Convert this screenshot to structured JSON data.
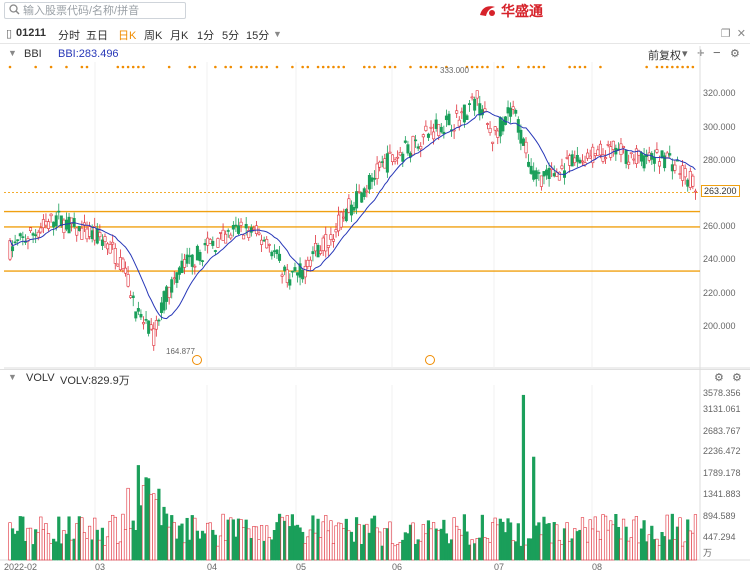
{
  "search": {
    "placeholder": "输入股票代码/名称/拼音"
  },
  "brand": {
    "name": "华盛通"
  },
  "symbol": {
    "code": "01211"
  },
  "periods": [
    {
      "label": "分时",
      "active": false
    },
    {
      "label": "五日",
      "active": false
    },
    {
      "label": "日K",
      "active": true
    },
    {
      "label": "周K",
      "active": false
    },
    {
      "label": "月K",
      "active": false
    },
    {
      "label": "1分",
      "active": false
    },
    {
      "label": "5分",
      "active": false
    },
    {
      "label": "15分",
      "active": false
    }
  ],
  "main_panel": {
    "indicator": "BBI",
    "indicator_value": "BBI:283.496",
    "adjust_label": "前复权",
    "high_label": "333.000",
    "low_label": "164.877",
    "current_price_label": "263.200",
    "y_ticks": [
      "320.000",
      "300.000",
      "280.000",
      "260.000",
      "240.000",
      "220.000",
      "200.000",
      "180.000"
    ]
  },
  "volume_panel": {
    "indicator": "VOLV",
    "indicator_value": "VOLV:829.9万",
    "y_ticks": [
      "3578.356",
      "3131.061",
      "2683.767",
      "2236.472",
      "1789.178",
      "1341.883",
      "894.589",
      "447.294"
    ],
    "unit": "万"
  },
  "x_axis": {
    "labels": [
      "2022-02",
      "03",
      "04",
      "05",
      "06",
      "07",
      "08"
    ]
  },
  "colors": {
    "up": "#e0303b",
    "down": "#1a9f5a",
    "bbi": "#2838b8",
    "hline": "#f0a010",
    "dot": "#f08c00"
  },
  "chart_data": {
    "type": "candlestick",
    "title": "",
    "price_levels": [
      252,
      243,
      217
    ],
    "y_range": [
      160,
      340
    ],
    "volume_range": [
      0,
      3800
    ]
  }
}
